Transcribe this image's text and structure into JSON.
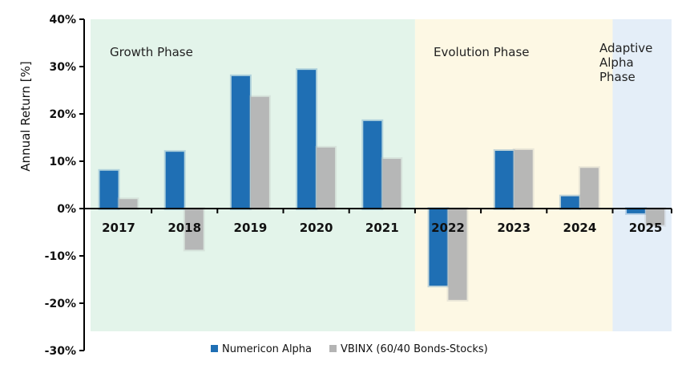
{
  "chart_data": {
    "type": "bar",
    "title": "",
    "xlabel": "",
    "ylabel": "Annual Return [%]",
    "ylim": [
      -30,
      40
    ],
    "yticks": [
      "-30%",
      "-20%",
      "-10%",
      "0%",
      "10%",
      "20%",
      "30%",
      "40%"
    ],
    "categories": [
      "2017",
      "2018",
      "2019",
      "2020",
      "2021",
      "2022",
      "2023",
      "2024",
      "2025"
    ],
    "series": [
      {
        "name": "Numericon Alpha",
        "color": "#1f6fb4",
        "values": [
          8,
          12,
          28,
          29.3,
          18.5,
          -16.3,
          12.2,
          2.6,
          -1
        ]
      },
      {
        "name": "VBINX (60/40 Bonds-Stocks)",
        "color": "#b4b4b4",
        "values": [
          2,
          -8.7,
          23.6,
          12.9,
          10.5,
          -19.3,
          12.4,
          8.6,
          -3.5
        ]
      }
    ],
    "phases": [
      {
        "label": [
          "Growth Phase"
        ],
        "from": "2017",
        "to": "2021",
        "color": "#e3f4ea"
      },
      {
        "label": [
          "Evolution Phase"
        ],
        "from": "2022",
        "to": "2024",
        "color": "#fdf8e4"
      },
      {
        "label": [
          "Adaptive",
          "Alpha",
          "Phase"
        ],
        "from": "2025",
        "to": "2025",
        "color": "#e4eef8"
      }
    ],
    "legend": "bottom",
    "grid": false
  }
}
